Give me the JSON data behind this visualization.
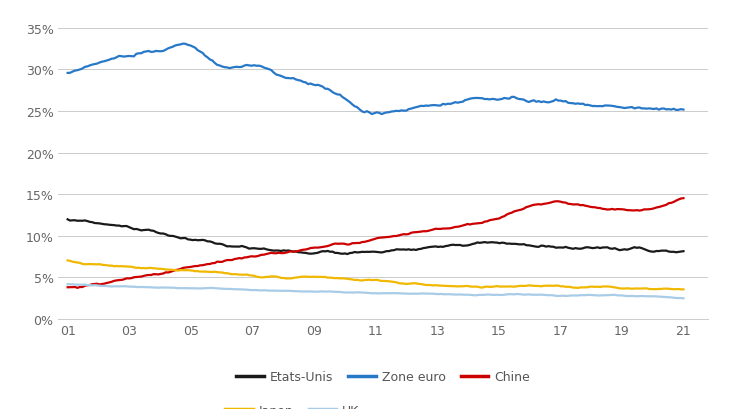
{
  "colors": {
    "zone_euro": "#2878c8",
    "etats_unis": "#1a1a1a",
    "chine": "#cc0000",
    "japon": "#f0b800",
    "uk": "#a8cce8"
  },
  "ylim": [
    0,
    37
  ],
  "yticks": [
    0,
    5,
    10,
    15,
    20,
    25,
    30,
    35
  ],
  "x_labels": [
    "01",
    "03",
    "05",
    "07",
    "09",
    "11",
    "13",
    "15",
    "17",
    "19",
    "21"
  ],
  "background_color": "#ffffff",
  "grid_color": "#cccccc",
  "linewidth": 1.6
}
